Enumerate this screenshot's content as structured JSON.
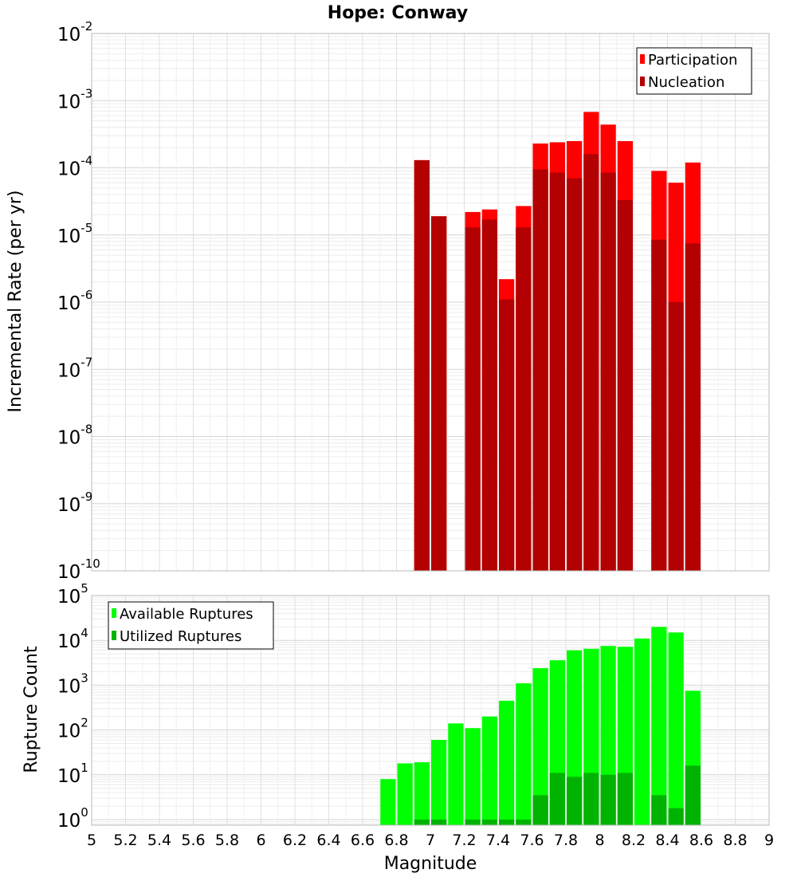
{
  "chart_data": [
    {
      "type": "bar",
      "panel": "top",
      "title": "Hope: Conway",
      "ylabel": "Incremental Rate (per yr)",
      "yscale": "log",
      "ylim": [
        1e-10,
        0.01
      ],
      "y_ticks": [
        {
          "base": "10",
          "exp": "-10"
        },
        {
          "base": "10",
          "exp": "-9"
        },
        {
          "base": "10",
          "exp": "-8"
        },
        {
          "base": "10",
          "exp": "-7"
        },
        {
          "base": "10",
          "exp": "-6"
        },
        {
          "base": "10",
          "exp": "-5"
        },
        {
          "base": "10",
          "exp": "-4"
        },
        {
          "base": "10",
          "exp": "-3"
        },
        {
          "base": "10",
          "exp": "-2"
        }
      ],
      "xlim": [
        5,
        9
      ],
      "bin_width": 0.1,
      "grid": true,
      "legend_position": "top-right",
      "series": [
        {
          "name": "Participation",
          "color": "#ff0000",
          "x": [
            6.95,
            7.05,
            7.25,
            7.35,
            7.45,
            7.55,
            7.65,
            7.75,
            7.85,
            7.95,
            8.05,
            8.15,
            8.35,
            8.45,
            8.55
          ],
          "values": [
            0.00013,
            1.9e-05,
            2.2e-05,
            2.4e-05,
            2.2e-06,
            2.7e-05,
            0.00023,
            0.00024,
            0.00025,
            0.00068,
            0.00044,
            0.00025,
            9e-05,
            6e-05,
            0.00012
          ]
        },
        {
          "name": "Nucleation",
          "color": "#b30000",
          "x": [
            6.95,
            7.05,
            7.25,
            7.35,
            7.45,
            7.55,
            7.65,
            7.75,
            7.85,
            7.95,
            8.05,
            8.15,
            8.35,
            8.45,
            8.55
          ],
          "values": [
            0.00013,
            1.9e-05,
            1.3e-05,
            1.7e-05,
            1.1e-06,
            1.3e-05,
            9.5e-05,
            8.5e-05,
            7e-05,
            0.00016,
            8.5e-05,
            3.3e-05,
            8.5e-06,
            1e-06,
            7.5e-06
          ]
        }
      ]
    },
    {
      "type": "bar",
      "panel": "bottom",
      "title": "",
      "ylabel": "Rupture Count",
      "xlabel": "Magnitude",
      "yscale": "log",
      "ylim": [
        0.75,
        100000
      ],
      "y_ticks": [
        {
          "base": "10",
          "exp": "0"
        },
        {
          "base": "10",
          "exp": "1"
        },
        {
          "base": "10",
          "exp": "2"
        },
        {
          "base": "10",
          "exp": "3"
        },
        {
          "base": "10",
          "exp": "4"
        },
        {
          "base": "10",
          "exp": "5"
        }
      ],
      "xlim": [
        5,
        9
      ],
      "x_ticks": [
        "5",
        "5.2",
        "5.4",
        "5.6",
        "5.8",
        "6",
        "6.2",
        "6.4",
        "6.6",
        "6.8",
        "7",
        "7.2",
        "7.4",
        "7.6",
        "7.8",
        "8",
        "8.2",
        "8.4",
        "8.6",
        "8.8",
        "9"
      ],
      "bin_width": 0.1,
      "grid": true,
      "legend_position": "top-left",
      "series": [
        {
          "name": "Available Ruptures",
          "color": "#00ff00",
          "x": [
            6.75,
            6.85,
            6.95,
            7.05,
            7.15,
            7.25,
            7.35,
            7.45,
            7.55,
            7.65,
            7.75,
            7.85,
            7.95,
            8.05,
            8.15,
            8.25,
            8.35,
            8.45,
            8.55
          ],
          "values": [
            8,
            18,
            19,
            60,
            140,
            110,
            200,
            450,
            1100,
            2400,
            3600,
            6000,
            6500,
            7500,
            7200,
            11000,
            20000,
            15000,
            750
          ]
        },
        {
          "name": "Utilized Ruptures",
          "color": "#00b300",
          "x": [
            6.95,
            7.05,
            7.25,
            7.35,
            7.45,
            7.55,
            7.65,
            7.75,
            7.85,
            7.95,
            8.05,
            8.15,
            8.35,
            8.45,
            8.55
          ],
          "values": [
            1,
            1,
            1,
            1,
            1,
            1,
            3.5,
            11,
            9,
            11,
            10,
            11,
            3.5,
            1.8,
            16
          ]
        }
      ]
    }
  ]
}
